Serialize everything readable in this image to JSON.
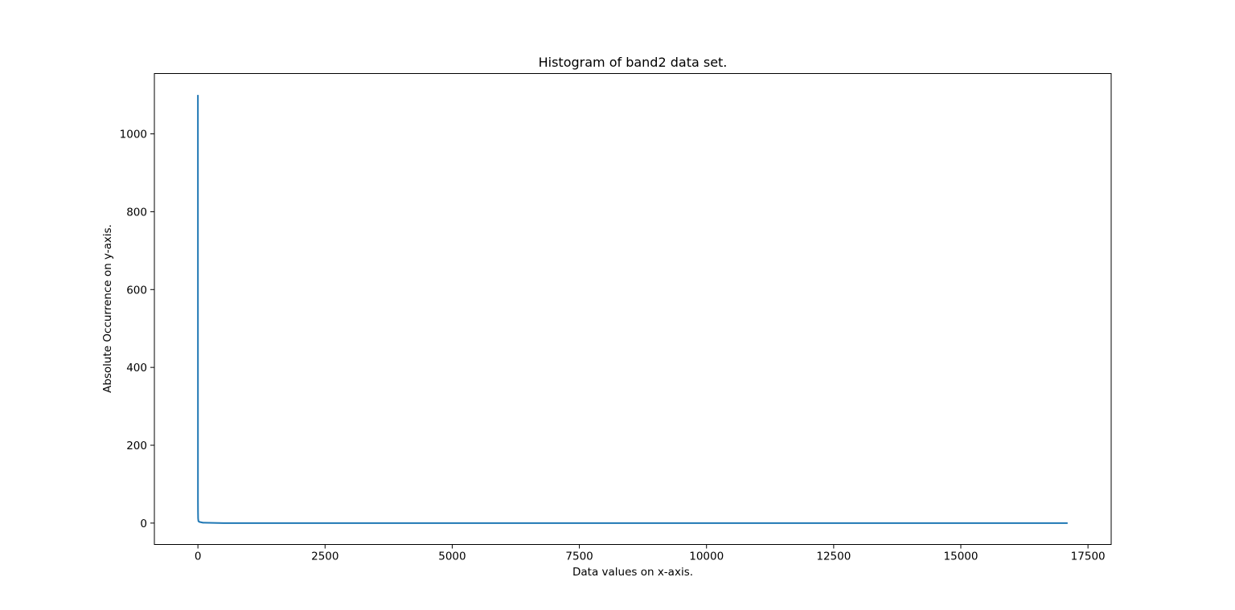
{
  "chart_data": {
    "type": "line",
    "title": "Histogram of band2 data set.",
    "xlabel": "Data values on x-axis.",
    "ylabel": "Absolute Occurrence on y-axis.",
    "xlim": [
      -856,
      17956
    ],
    "ylim": [
      -55,
      1155
    ],
    "grid": false,
    "legend": "none",
    "color": "#1f77b4",
    "xticks": [
      0,
      2500,
      5000,
      7500,
      10000,
      12500,
      15000,
      17500
    ],
    "xtick_labels": [
      "0",
      "2500",
      "5000",
      "7500",
      "10000",
      "12500",
      "15000",
      "17500"
    ],
    "yticks": [
      0,
      200,
      400,
      600,
      800,
      1000
    ],
    "ytick_labels": [
      "0",
      "200",
      "400",
      "600",
      "800",
      "1000"
    ],
    "series": [
      {
        "x": [
          0,
          1,
          2,
          4,
          10,
          30,
          100,
          500,
          2000,
          5000,
          10000,
          15000,
          17100
        ],
        "y": [
          1100,
          55,
          30,
          12,
          5,
          3,
          1,
          0,
          0,
          0,
          0,
          0,
          0
        ]
      }
    ]
  }
}
